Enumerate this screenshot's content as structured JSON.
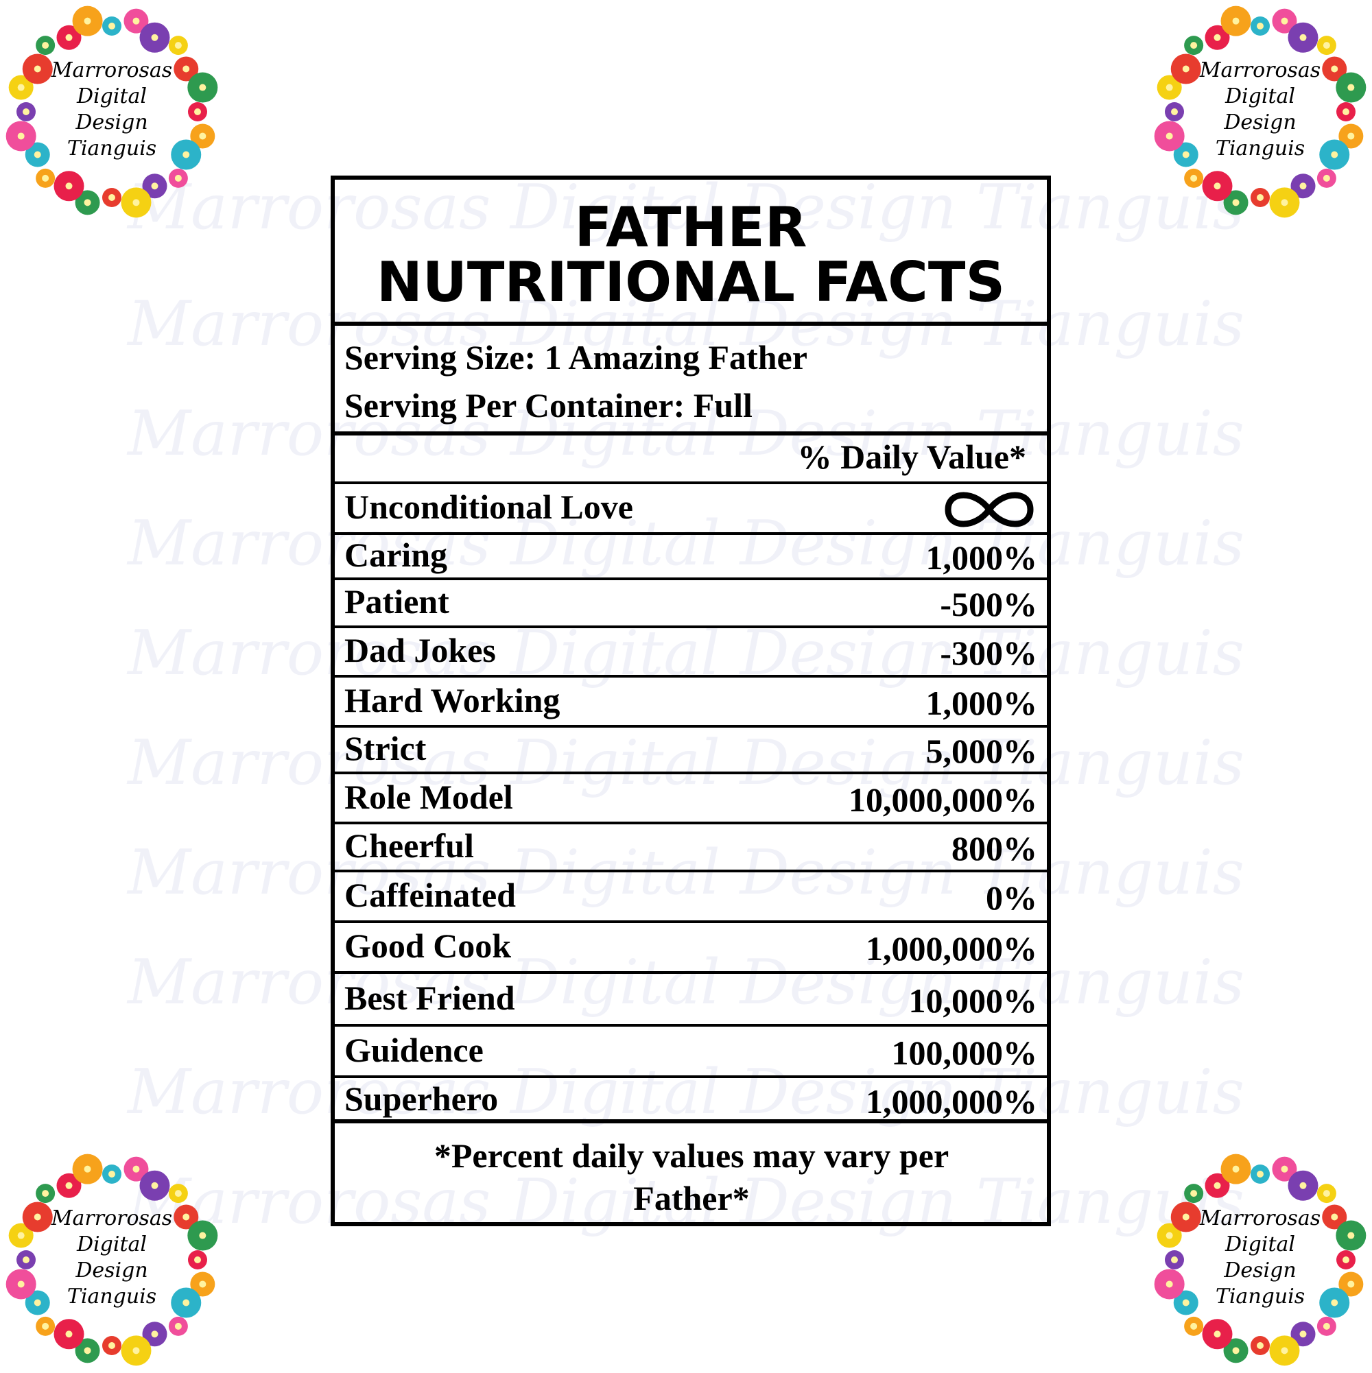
{
  "logo": {
    "lines": [
      "Marrorosas",
      "Digital",
      "Design",
      "Tianguis"
    ]
  },
  "watermark": "Marrorosas Digital Design Tianguis",
  "header": {
    "title_lines": [
      "FATHER",
      "NUTRITIONAL FACTS"
    ]
  },
  "serving": {
    "size": "Serving Size: 1 Amazing Father",
    "per_container": "Serving Per Container: Full"
  },
  "daily_value_header": "% Daily Value*",
  "table": {
    "rows": [
      [
        "Unconditional Love"
      ],
      [
        "Caring",
        "1,000%"
      ],
      [
        "Patient",
        "-500%"
      ],
      [
        "Dad Jokes",
        "-300%"
      ],
      [
        "Hard Working",
        "1,000%"
      ],
      [
        "Strict",
        "5,000%"
      ],
      [
        "Role Model",
        "10,000,000%"
      ],
      [
        "Cheerful",
        "800%"
      ],
      [
        "Caffeinated",
        "0%"
      ],
      [
        "Good Cook",
        "1,000,000%"
      ],
      [
        "Best Friend",
        "10,000%"
      ],
      [
        "Guidence",
        "100,000%"
      ],
      [
        "Superhero",
        "1,000,000%"
      ]
    ]
  },
  "footnote": "*Percent daily values may vary per Father*"
}
